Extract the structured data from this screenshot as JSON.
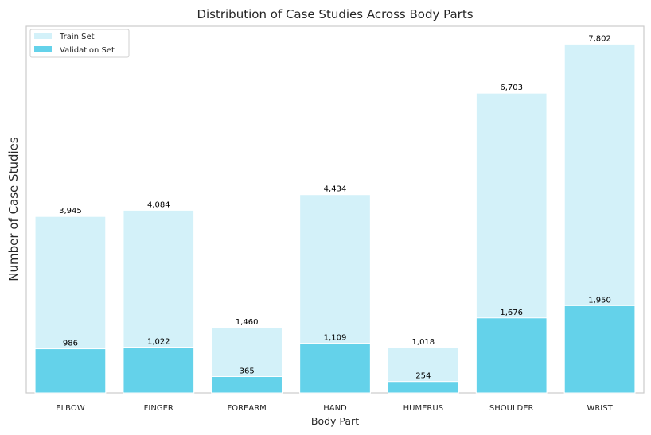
{
  "chart_data": {
    "type": "bar",
    "title": "Distribution of Case Studies Across Body Parts",
    "xlabel": "Body Part",
    "ylabel": "Number of Case Studies",
    "categories": [
      "ELBOW",
      "FINGER",
      "FOREARM",
      "HAND",
      "HUMERUS",
      "SHOULDER",
      "WRIST"
    ],
    "series": [
      {
        "name": "Train Set",
        "values": [
          3945,
          4084,
          1460,
          4434,
          1018,
          6703,
          7802
        ],
        "labels": [
          "3,945",
          "4,084",
          "1,460",
          "4,434",
          "1,018",
          "6,703",
          "7,802"
        ],
        "color": "#d3f1f9"
      },
      {
        "name": "Validation Set",
        "values": [
          986,
          1022,
          365,
          1109,
          254,
          1676,
          1950
        ],
        "labels": [
          "986",
          "1,022",
          "365",
          "1,109",
          "254",
          "1,676",
          "1,950"
        ],
        "color": "#64d2ea"
      }
    ],
    "overlay": true,
    "ylim": [
      0,
      8200
    ],
    "grid": false,
    "legend": "top-left",
    "data_labels": true
  }
}
